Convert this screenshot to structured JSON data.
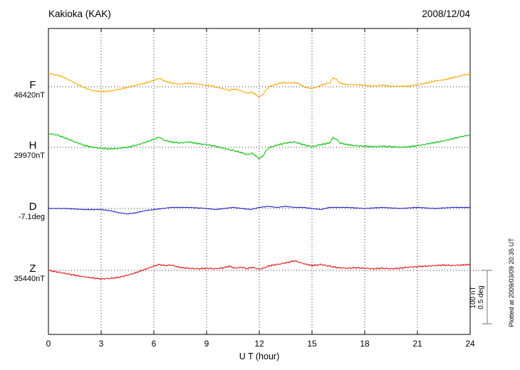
{
  "chart_data": {
    "type": "line",
    "title": "Kakioka (KAK)",
    "date": "2008/12/04",
    "xlabel": "U T (hour)",
    "x_range": [
      0,
      24
    ],
    "x_ticks": [
      0,
      3,
      6,
      9,
      12,
      15,
      18,
      21,
      24
    ],
    "grid": "dotted vertical gridlines every 3 hours; dotted horizontal baseline for each trace",
    "legend_position": "left of each trace",
    "scale_bar": {
      "nT": 100,
      "deg": 0.5,
      "label_lines": [
        "100 nT",
        "0.5 deg"
      ]
    },
    "plotted_at": "Plotted at 2009/03/09 20:35 UT",
    "series": [
      {
        "name": "F",
        "unit": "nT",
        "color": "#FFA500",
        "baseline_value": 46420,
        "baseline_label": "46420nT",
        "points": [
          [
            0,
            25
          ],
          [
            0.5,
            22
          ],
          [
            1,
            16
          ],
          [
            1.5,
            7
          ],
          [
            2,
            -1
          ],
          [
            2.5,
            -7
          ],
          [
            3,
            -9
          ],
          [
            3.5,
            -8
          ],
          [
            4,
            -5
          ],
          [
            4.5,
            -1
          ],
          [
            5,
            3
          ],
          [
            5.5,
            7
          ],
          [
            6,
            12
          ],
          [
            6.3,
            16
          ],
          [
            6.6,
            11
          ],
          [
            7,
            7
          ],
          [
            7.5,
            5
          ],
          [
            8,
            7
          ],
          [
            8.5,
            5
          ],
          [
            9,
            3
          ],
          [
            9.5,
            0
          ],
          [
            10,
            -4
          ],
          [
            10.3,
            -7
          ],
          [
            10.6,
            -4
          ],
          [
            11,
            -8
          ],
          [
            11.3,
            -12
          ],
          [
            11.6,
            -10
          ],
          [
            12,
            -19
          ],
          [
            12.2,
            -15
          ],
          [
            12.4,
            -5
          ],
          [
            12.6,
            1
          ],
          [
            13,
            5
          ],
          [
            13.3,
            8
          ],
          [
            13.6,
            7
          ],
          [
            14,
            8
          ],
          [
            14.3,
            5
          ],
          [
            14.6,
            -1
          ],
          [
            15,
            -3
          ],
          [
            15.3,
            0
          ],
          [
            15.6,
            4
          ],
          [
            16,
            7
          ],
          [
            16.2,
            17
          ],
          [
            16.4,
            13
          ],
          [
            16.6,
            7
          ],
          [
            17,
            4
          ],
          [
            17.5,
            4
          ],
          [
            18,
            3
          ],
          [
            18.5,
            1
          ],
          [
            19,
            3
          ],
          [
            19.5,
            1
          ],
          [
            20,
            1
          ],
          [
            20.5,
            1
          ],
          [
            21,
            4
          ],
          [
            21.5,
            7
          ],
          [
            22,
            11
          ],
          [
            22.5,
            13
          ],
          [
            23,
            17
          ],
          [
            23.5,
            21
          ],
          [
            24,
            24
          ]
        ]
      },
      {
        "name": "H",
        "unit": "nT",
        "color": "#00C000",
        "baseline_value": 29970,
        "baseline_label": "29970nT",
        "points": [
          [
            0,
            26
          ],
          [
            0.5,
            23
          ],
          [
            1,
            17
          ],
          [
            1.5,
            10
          ],
          [
            2,
            4
          ],
          [
            2.5,
            0
          ],
          [
            3,
            -2
          ],
          [
            3.5,
            -3
          ],
          [
            4,
            -2
          ],
          [
            4.5,
            0
          ],
          [
            5,
            4
          ],
          [
            5.5,
            9
          ],
          [
            6,
            15
          ],
          [
            6.3,
            19
          ],
          [
            6.6,
            13
          ],
          [
            7,
            10
          ],
          [
            7.5,
            8
          ],
          [
            8,
            10
          ],
          [
            8.5,
            7
          ],
          [
            9,
            5
          ],
          [
            9.5,
            2
          ],
          [
            10,
            -2
          ],
          [
            10.5,
            -6
          ],
          [
            11,
            -10
          ],
          [
            11.3,
            -14
          ],
          [
            11.6,
            -11
          ],
          [
            12,
            -21
          ],
          [
            12.2,
            -17
          ],
          [
            12.4,
            -6
          ],
          [
            12.6,
            0
          ],
          [
            13,
            4
          ],
          [
            13.5,
            8
          ],
          [
            14,
            10
          ],
          [
            14.5,
            5
          ],
          [
            15,
            1
          ],
          [
            15.5,
            5
          ],
          [
            16,
            8
          ],
          [
            16.2,
            18
          ],
          [
            16.4,
            15
          ],
          [
            16.6,
            8
          ],
          [
            17,
            5
          ],
          [
            17.5,
            3
          ],
          [
            18,
            2
          ],
          [
            18.5,
            1
          ],
          [
            19,
            2
          ],
          [
            19.5,
            1
          ],
          [
            20,
            0
          ],
          [
            20.5,
            1
          ],
          [
            21,
            3
          ],
          [
            21.5,
            6
          ],
          [
            22,
            9
          ],
          [
            22.5,
            12
          ],
          [
            23,
            16
          ],
          [
            23.5,
            20
          ],
          [
            24,
            23
          ]
        ]
      },
      {
        "name": "D",
        "unit": "deg",
        "color": "#1010CC",
        "baseline_value": -7.1,
        "baseline_label": "-7.1deg",
        "points": [
          [
            0,
            0
          ],
          [
            1,
            0
          ],
          [
            2,
            -0.01
          ],
          [
            3,
            -0.01
          ],
          [
            3.5,
            -0.02
          ],
          [
            4,
            -0.04
          ],
          [
            4.5,
            -0.05
          ],
          [
            5,
            -0.04
          ],
          [
            5.5,
            -0.02
          ],
          [
            6,
            -0.01
          ],
          [
            6.5,
            0
          ],
          [
            7,
            0.01
          ],
          [
            8,
            0.01
          ],
          [
            9,
            0
          ],
          [
            9.5,
            -0.01
          ],
          [
            10,
            0
          ],
          [
            10.5,
            0.01
          ],
          [
            11,
            0
          ],
          [
            11.5,
            -0.01
          ],
          [
            12,
            0.01
          ],
          [
            12.5,
            0.02
          ],
          [
            13,
            0.01
          ],
          [
            13.5,
            0.02
          ],
          [
            14,
            0.01
          ],
          [
            14.5,
            0.01
          ],
          [
            15,
            0
          ],
          [
            15.5,
            -0.01
          ],
          [
            16,
            0.01
          ],
          [
            16.5,
            0.01
          ],
          [
            17,
            0.01
          ],
          [
            18,
            0
          ],
          [
            19,
            0.01
          ],
          [
            20,
            0
          ],
          [
            21,
            0.01
          ],
          [
            22,
            0
          ],
          [
            23,
            0.01
          ],
          [
            24,
            0.01
          ]
        ]
      },
      {
        "name": "Z",
        "unit": "nT",
        "color": "#DD1111",
        "baseline_value": 35440,
        "baseline_label": "35440nT",
        "points": [
          [
            0,
            0
          ],
          [
            0.5,
            -3
          ],
          [
            1,
            -6
          ],
          [
            1.5,
            -9
          ],
          [
            2,
            -12
          ],
          [
            2.5,
            -14
          ],
          [
            3,
            -16
          ],
          [
            3.5,
            -15
          ],
          [
            4,
            -13
          ],
          [
            4.5,
            -9
          ],
          [
            5,
            -4
          ],
          [
            5.5,
            2
          ],
          [
            6,
            8
          ],
          [
            6.3,
            11
          ],
          [
            6.6,
            9
          ],
          [
            7,
            10
          ],
          [
            7.3,
            7
          ],
          [
            7.6,
            5
          ],
          [
            8,
            4
          ],
          [
            8.5,
            3
          ],
          [
            9,
            4
          ],
          [
            9.5,
            3
          ],
          [
            10,
            5
          ],
          [
            10.3,
            8
          ],
          [
            10.6,
            4
          ],
          [
            11,
            6
          ],
          [
            11.3,
            3
          ],
          [
            11.6,
            6
          ],
          [
            12,
            2
          ],
          [
            12.3,
            5
          ],
          [
            12.6,
            9
          ],
          [
            13,
            11
          ],
          [
            13.5,
            14
          ],
          [
            14,
            18
          ],
          [
            14.3,
            15
          ],
          [
            14.6,
            12
          ],
          [
            15,
            9
          ],
          [
            15.5,
            11
          ],
          [
            16,
            8
          ],
          [
            16.5,
            5
          ],
          [
            17,
            4
          ],
          [
            17.5,
            5
          ],
          [
            18,
            4
          ],
          [
            18.5,
            3
          ],
          [
            19,
            4
          ],
          [
            19.5,
            3
          ],
          [
            20,
            4
          ],
          [
            20.5,
            6
          ],
          [
            21,
            7
          ],
          [
            21.5,
            8
          ],
          [
            22,
            9
          ],
          [
            22.5,
            10
          ],
          [
            23,
            9
          ],
          [
            23.5,
            10
          ],
          [
            24,
            11
          ]
        ]
      }
    ]
  }
}
